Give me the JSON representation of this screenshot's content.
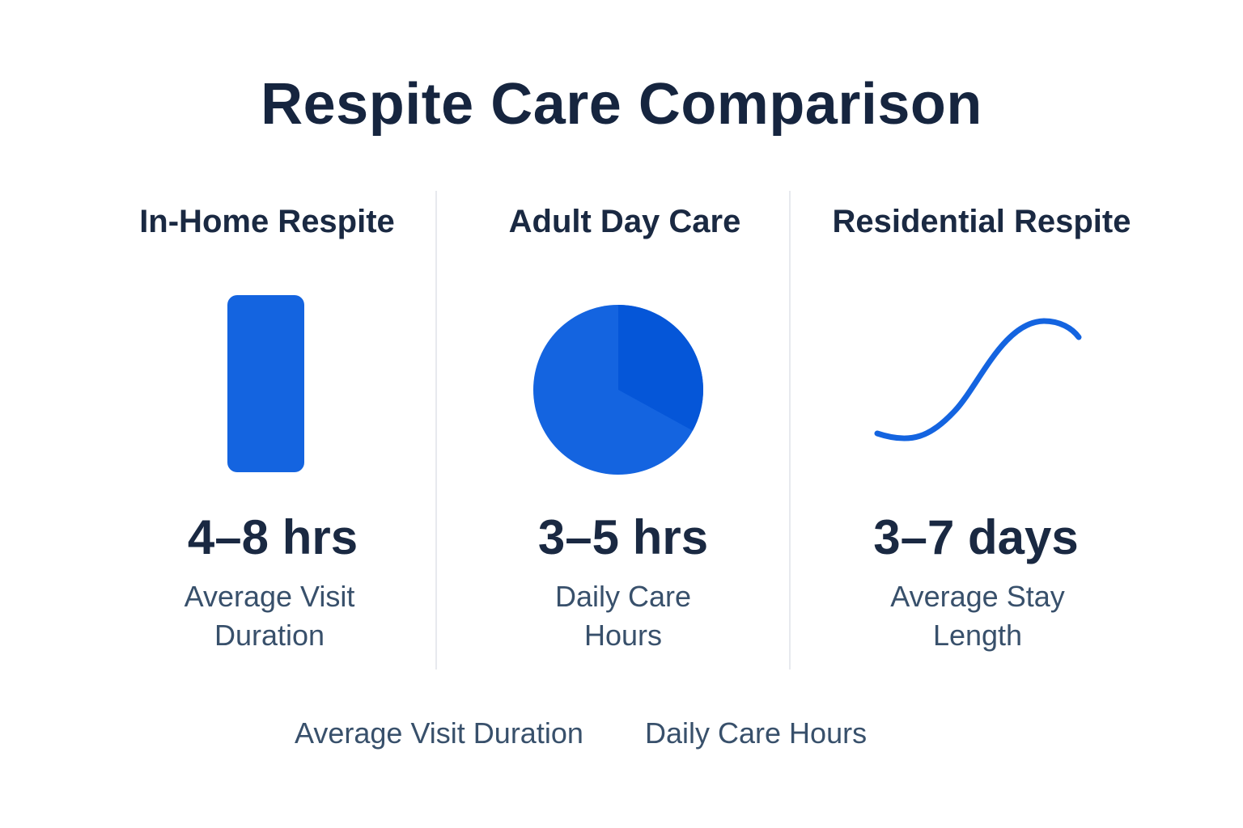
{
  "chart_data": {
    "type": "table",
    "title": "Respite Care Comparison",
    "columns": [
      {
        "name": "In-Home Respite",
        "metric": "4–8 hrs",
        "description": "Average Visit Duration",
        "icon": "bar-icon",
        "range": [
          4,
          8
        ],
        "unit": "hrs"
      },
      {
        "name": "Adult Day Care",
        "metric": "3–5 hrs",
        "description": "Daily Care Hours",
        "icon": "pie-icon",
        "range": [
          3,
          5
        ],
        "unit": "hrs",
        "pie_highlight_fraction": 0.33
      },
      {
        "name": "Residential Respite",
        "metric": "3–7 days",
        "description": "Average Stay Length",
        "icon": "line-icon",
        "range": [
          3,
          7
        ],
        "unit": "days"
      }
    ],
    "legend": [
      "Average Visit Duration",
      "Daily Care Hours"
    ],
    "colors": {
      "primary": "#1464e0",
      "primary_dark": "#0556d8",
      "text_dark": "#16253f",
      "text_muted": "#38506b",
      "divider": "#e7e9ee"
    }
  }
}
